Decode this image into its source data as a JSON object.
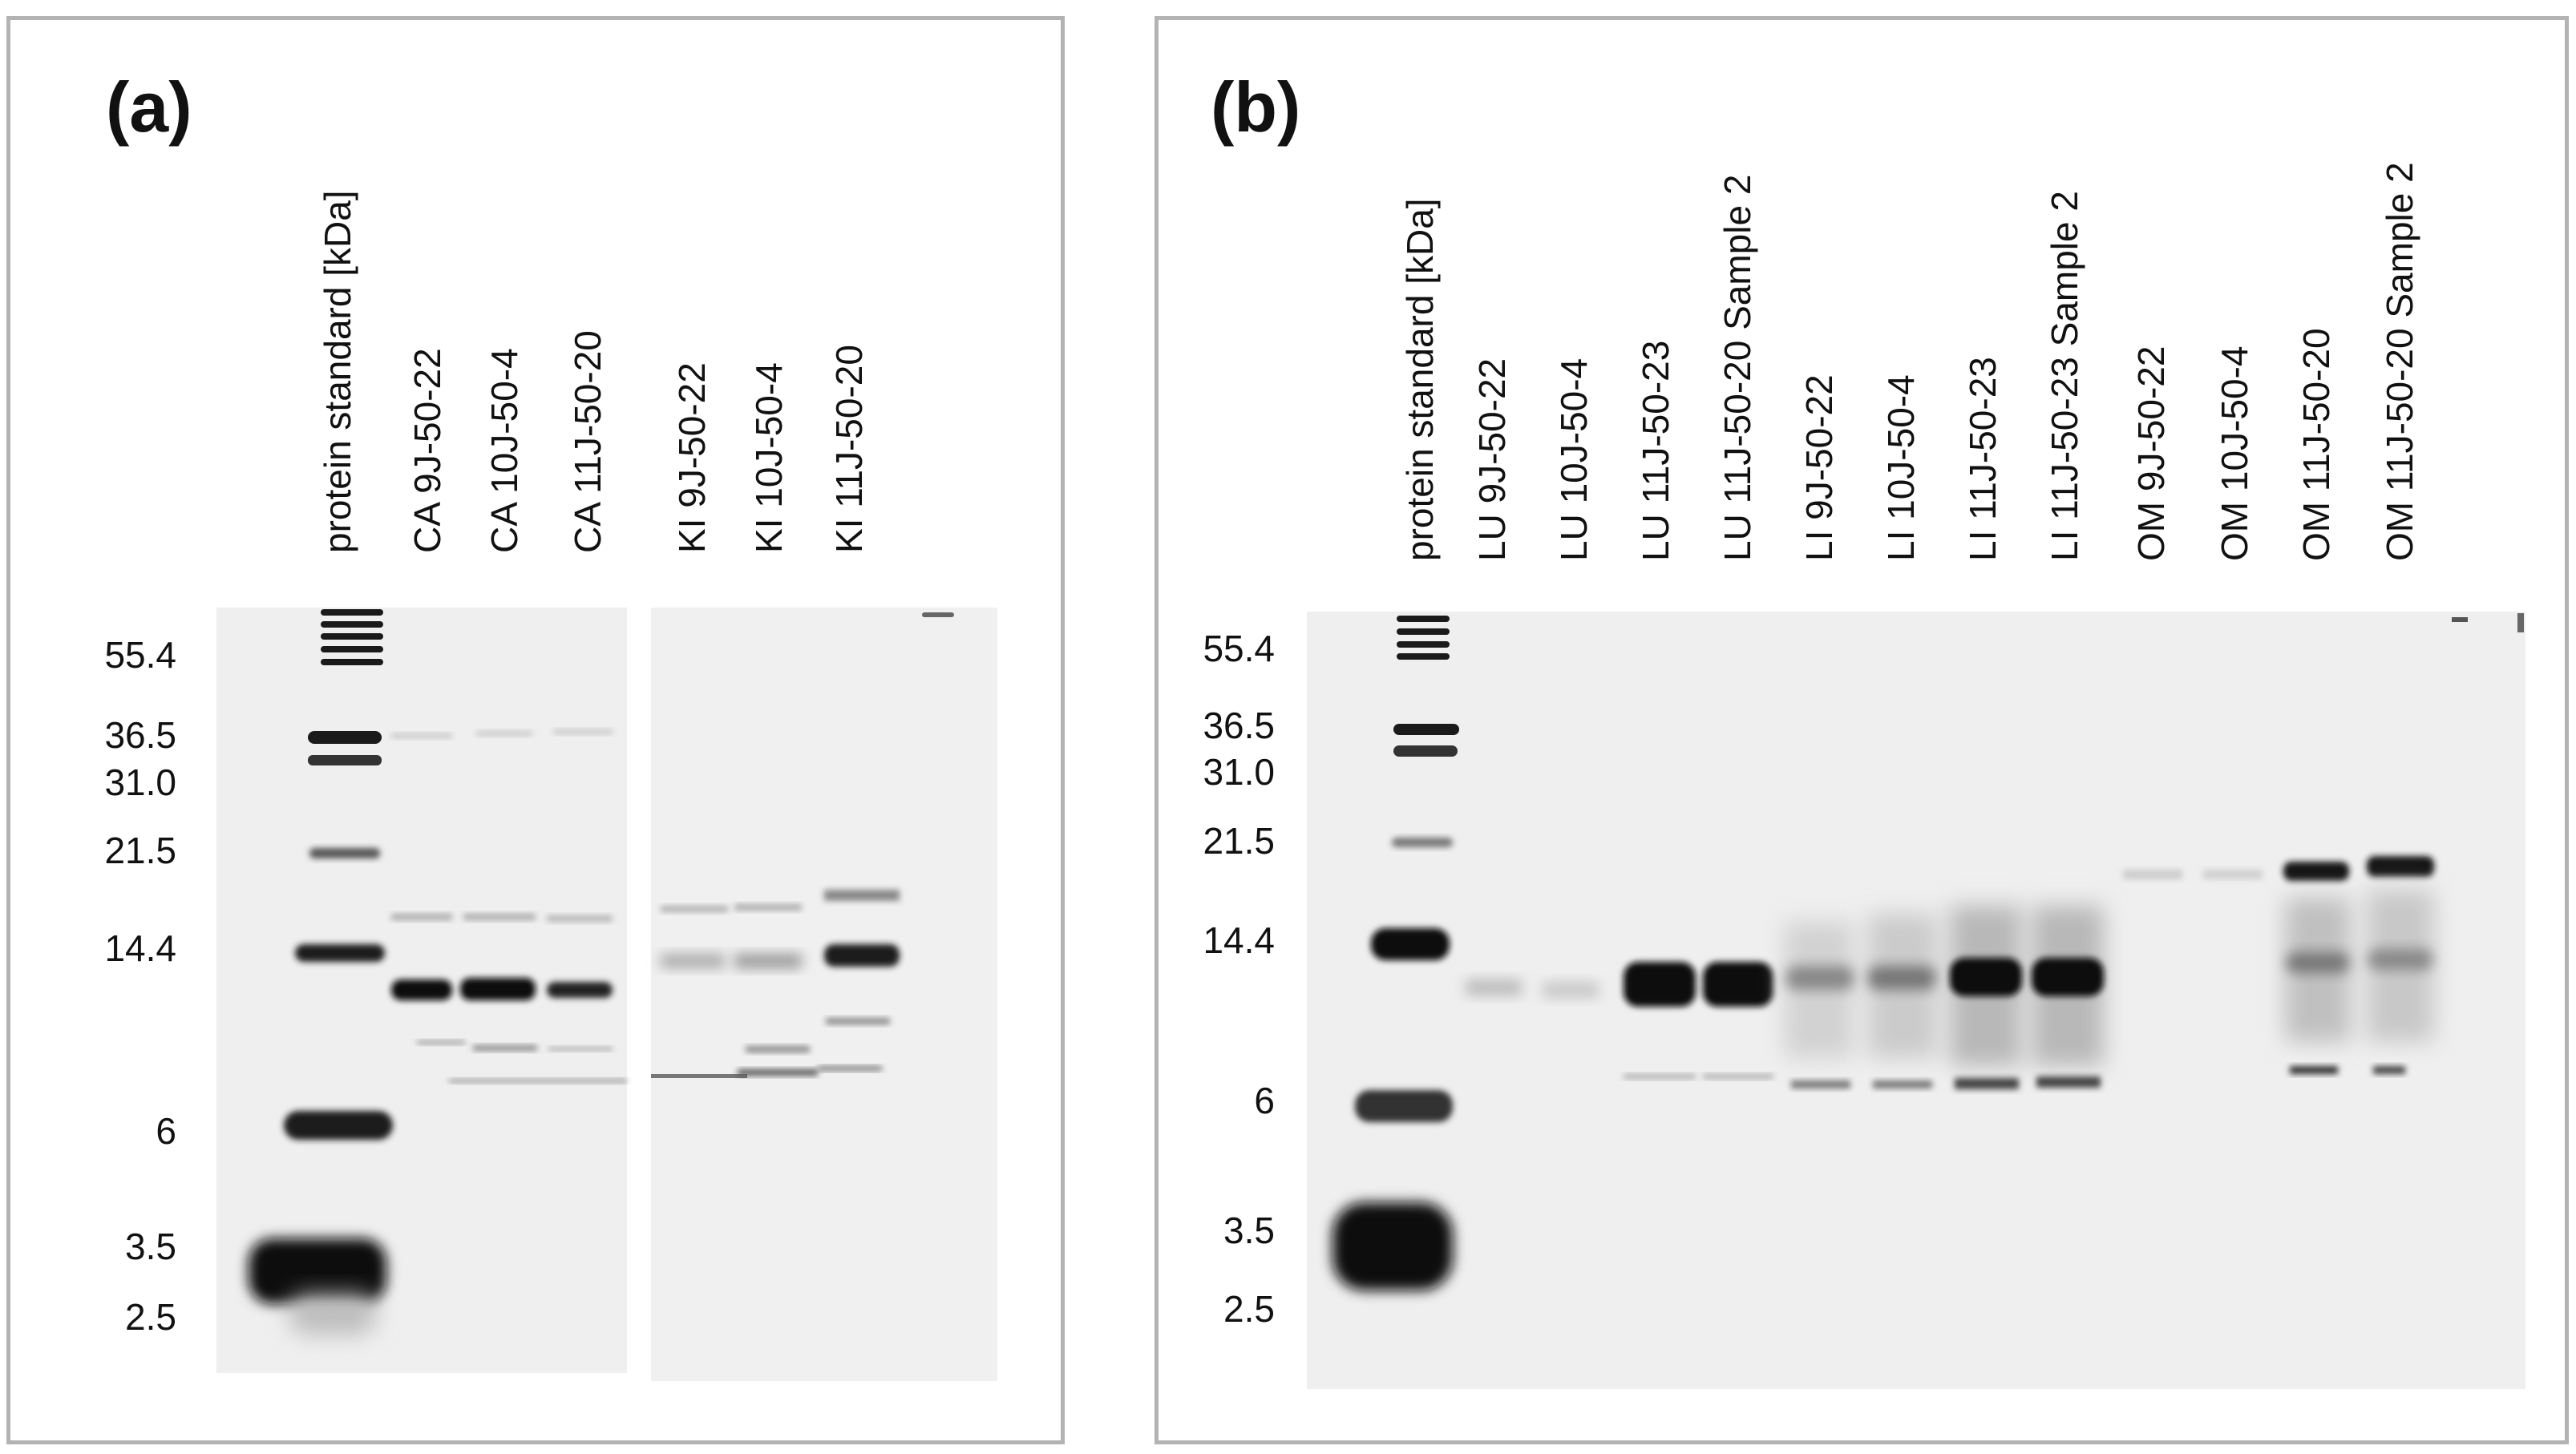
{
  "panel_a": {
    "label": "(a)",
    "lanes": [
      "protein standard [kDa]",
      "CA 9J-50-22",
      "CA 10J-50-4",
      "CA 11J-50-20",
      "KI 9J-50-22",
      "KI 10J-50-4",
      "KI 11J-50-20"
    ],
    "markers": [
      "55.4",
      "36.5",
      "31.0",
      "21.5",
      "14.4",
      "6",
      "3.5",
      "2.5"
    ]
  },
  "panel_b": {
    "label": "(b)",
    "lanes": [
      "protein standard [kDa]",
      "LU 9J-50-22",
      "LU 10J-50-4",
      "LU 11J-50-23",
      "LU 11J-50-20 Sample 2",
      "LI 9J-50-22",
      "LI 10J-50-4",
      "LI 11J-50-23",
      "LI 11J-50-23 Sample 2",
      "OM 9J-50-22",
      "OM 10J-50-4",
      "OM 11J-50-20",
      "OM 11J-50-20 Sample 2"
    ],
    "markers": [
      "55.4",
      "36.5",
      "31.0",
      "21.5",
      "14.4",
      "6",
      "3.5",
      "2.5"
    ]
  }
}
